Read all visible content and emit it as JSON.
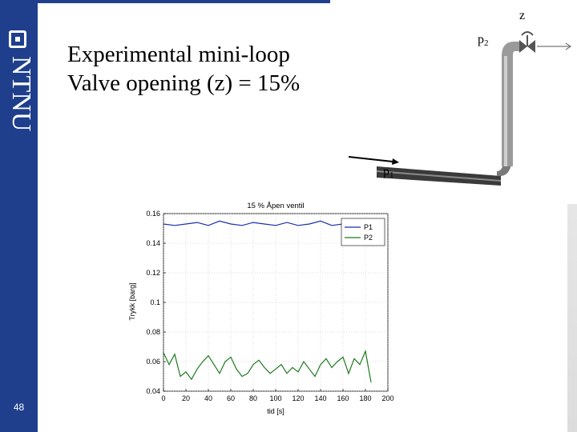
{
  "slide": {
    "title_line1": "Experimental mini-loop",
    "title_line2": "Valve opening (z) = 15%",
    "page_number": "48",
    "logo_text": "NTNU"
  },
  "diagram": {
    "label_z": "z",
    "label_p2": "p",
    "label_p2_sub": "2",
    "label_p1": "p",
    "label_p1_sub": "1"
  },
  "chart_data": {
    "type": "line",
    "title": "15 % Åpen ventil",
    "xlabel": "tid [s]",
    "ylabel": "Trykk [barg]",
    "xlim": [
      0,
      200
    ],
    "ylim": [
      0.04,
      0.16
    ],
    "xticks": [
      0,
      20,
      40,
      60,
      80,
      100,
      120,
      140,
      160,
      180,
      200
    ],
    "yticks": [
      0.04,
      0.06,
      0.08,
      0.1,
      0.12,
      0.14,
      0.16
    ],
    "ytick_labels": [
      "0.04",
      "0.06",
      "0.08",
      "0.1",
      "0.12",
      "0.14",
      "0.16"
    ],
    "legend_position": "top-right",
    "series": [
      {
        "name": "P1",
        "color": "#1a2fa8",
        "x": [
          0,
          10,
          20,
          30,
          40,
          50,
          60,
          70,
          80,
          90,
          100,
          110,
          120,
          130,
          140,
          150,
          160,
          170,
          180,
          185
        ],
        "y": [
          0.153,
          0.152,
          0.153,
          0.154,
          0.152,
          0.155,
          0.153,
          0.152,
          0.154,
          0.153,
          0.152,
          0.154,
          0.152,
          0.153,
          0.155,
          0.152,
          0.153,
          0.152,
          0.154,
          0.153
        ]
      },
      {
        "name": "P2",
        "color": "#1e7a1e",
        "x": [
          0,
          5,
          10,
          15,
          20,
          25,
          30,
          35,
          40,
          45,
          50,
          55,
          60,
          65,
          70,
          75,
          80,
          85,
          90,
          95,
          100,
          105,
          110,
          115,
          120,
          125,
          130,
          135,
          140,
          145,
          150,
          155,
          160,
          165,
          170,
          175,
          180,
          185
        ],
        "y": [
          0.066,
          0.058,
          0.065,
          0.05,
          0.053,
          0.048,
          0.055,
          0.06,
          0.064,
          0.058,
          0.052,
          0.06,
          0.063,
          0.055,
          0.05,
          0.052,
          0.058,
          0.061,
          0.056,
          0.052,
          0.055,
          0.058,
          0.052,
          0.056,
          0.053,
          0.06,
          0.055,
          0.05,
          0.058,
          0.062,
          0.056,
          0.06,
          0.063,
          0.052,
          0.062,
          0.058,
          0.067,
          0.046
        ]
      }
    ]
  }
}
